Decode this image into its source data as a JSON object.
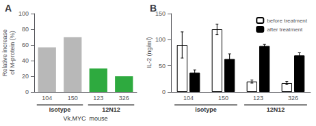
{
  "chart_data": [
    {
      "type": "bar",
      "title": "A",
      "ylabel": "Relative increase\nof M-protein (%)",
      "xlabel": "Vk.MYC  mouse",
      "categories": [
        "104",
        "150",
        "123",
        "326"
      ],
      "values": [
        57,
        70,
        30,
        20
      ],
      "colors": [
        "#b8b8b8",
        "#b8b8b8",
        "#2eaa3f",
        "#2eaa3f"
      ],
      "group_labels": [
        "Isotype",
        "12N12"
      ],
      "ylim": [
        0,
        100
      ],
      "yticks": [
        0,
        20,
        40,
        60,
        80,
        100
      ],
      "grid": false
    },
    {
      "type": "bar",
      "title": "B",
      "ylabel": "IL-2 (ng/ml)",
      "categories": [
        "104",
        "150",
        "123",
        "326"
      ],
      "series": [
        {
          "name": "before treatment",
          "color": "#ffffff",
          "values": [
            90,
            120,
            20,
            17
          ],
          "errors": [
            25,
            10,
            3,
            3
          ]
        },
        {
          "name": "after treatment",
          "color": "#000000",
          "values": [
            37,
            63,
            88,
            70
          ],
          "errors": [
            5,
            10,
            3,
            5
          ]
        }
      ],
      "group_labels": [
        "isotype",
        "12N12"
      ],
      "ylim": [
        0,
        150
      ],
      "yticks": [
        0,
        50,
        100,
        150
      ],
      "grid": false,
      "legend": "upper right"
    }
  ]
}
